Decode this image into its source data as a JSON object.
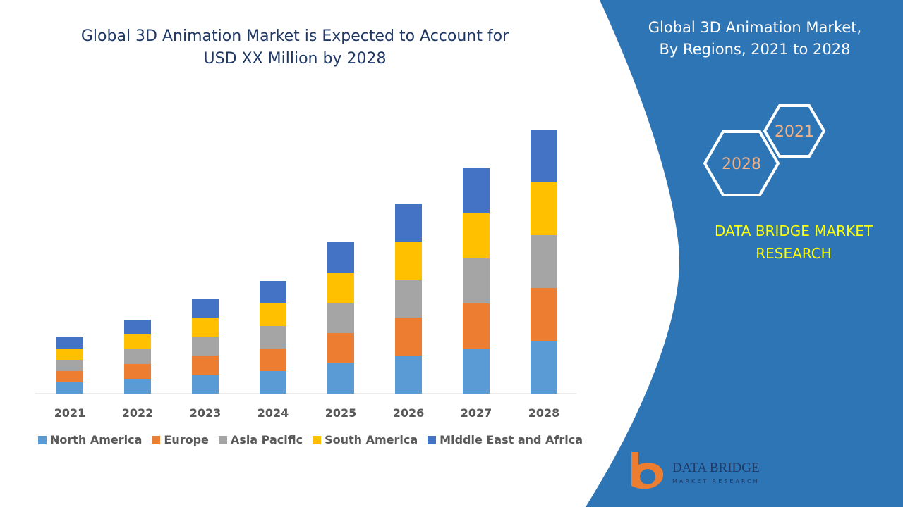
{
  "chart_data": {
    "type": "bar",
    "stacked": true,
    "title": "Global 3D Animation Market is Expected to Account for USD XX Million by 2028",
    "categories": [
      "2021",
      "2022",
      "2023",
      "2024",
      "2025",
      "2026",
      "2027",
      "2028"
    ],
    "series": [
      {
        "name": "North America",
        "color": "#5b9bd5",
        "values": [
          16,
          21,
          27,
          32,
          43,
          54,
          64,
          75
        ]
      },
      {
        "name": "Europe",
        "color": "#ed7d31",
        "values": [
          16,
          21,
          27,
          32,
          43,
          54,
          64,
          75
        ]
      },
      {
        "name": "Asia Pacific",
        "color": "#a5a5a5",
        "values": [
          16,
          21,
          27,
          32,
          43,
          54,
          64,
          75
        ]
      },
      {
        "name": "South America",
        "color": "#ffc000",
        "values": [
          16,
          21,
          27,
          32,
          43,
          54,
          64,
          75
        ]
      },
      {
        "name": "Middle East and Africa",
        "color": "#4472c4",
        "values": [
          16,
          21,
          27,
          32,
          43,
          54,
          64,
          75
        ]
      }
    ],
    "legend": "bottom"
  },
  "sidebar": {
    "title": "Global 3D Animation Market, By Regions, 2021 to 2028",
    "hex_small": "2021",
    "hex_large": "2028",
    "brand": "DATA BRIDGE MARKET RESEARCH",
    "logo_name": "DATA BRIDGE",
    "logo_tagline": "MARKET RESEARCH"
  }
}
